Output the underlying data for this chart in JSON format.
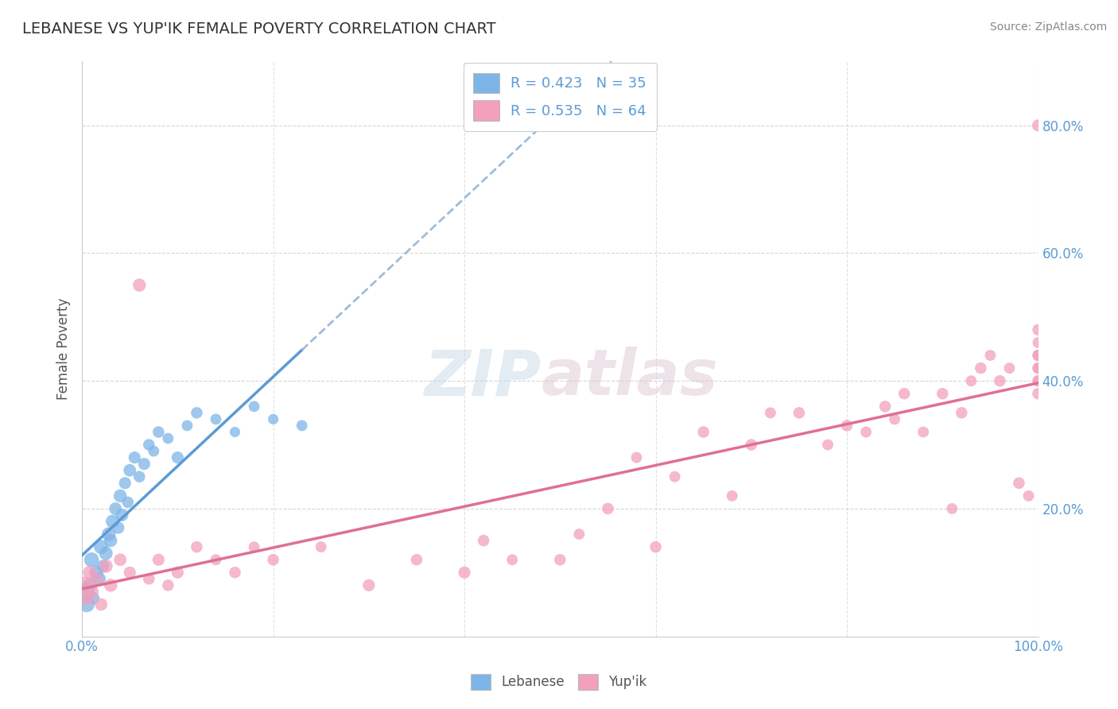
{
  "title": "LEBANESE VS YUP'IK FEMALE POVERTY CORRELATION CHART",
  "source": "Source: ZipAtlas.com",
  "ylabel": "Female Poverty",
  "blue_color": "#7eb5e8",
  "pink_color": "#f2a0bc",
  "trend_blue_solid": "#5b9bd5",
  "trend_blue_dash": "#a0bcd8",
  "trend_pink": "#e07090",
  "legend_label_blue": "R = 0.423   N = 35",
  "legend_label_pink": "R = 0.535   N = 64",
  "bottom_legend": [
    "Lebanese",
    "Yup'ik"
  ],
  "watermark_zip": "ZIP",
  "watermark_atlas": "atlas",
  "leb_x": [
    0.3,
    0.5,
    0.8,
    1.0,
    1.2,
    1.5,
    1.8,
    2.0,
    2.2,
    2.5,
    2.8,
    3.0,
    3.2,
    3.5,
    3.8,
    4.0,
    4.2,
    4.5,
    4.8,
    5.0,
    5.5,
    6.0,
    6.5,
    7.0,
    7.5,
    8.0,
    9.0,
    10.0,
    11.0,
    12.0,
    14.0,
    16.0,
    18.0,
    20.0,
    23.0
  ],
  "leb_y": [
    7,
    5,
    8,
    12,
    6,
    10,
    9,
    14,
    11,
    13,
    16,
    15,
    18,
    20,
    17,
    22,
    19,
    24,
    21,
    26,
    28,
    25,
    27,
    30,
    29,
    32,
    31,
    28,
    33,
    35,
    34,
    32,
    36,
    34,
    33
  ],
  "leb_size": [
    300,
    200,
    150,
    180,
    120,
    160,
    140,
    170,
    130,
    150,
    160,
    140,
    150,
    130,
    120,
    140,
    130,
    120,
    110,
    130,
    120,
    110,
    120,
    110,
    100,
    110,
    100,
    120,
    100,
    110,
    100,
    90,
    100,
    90,
    100
  ],
  "yup_x": [
    0.3,
    0.5,
    0.8,
    1.0,
    1.5,
    2.0,
    2.5,
    3.0,
    4.0,
    5.0,
    6.0,
    7.0,
    8.0,
    9.0,
    10.0,
    12.0,
    14.0,
    16.0,
    18.0,
    20.0,
    25.0,
    30.0,
    35.0,
    40.0,
    42.0,
    45.0,
    50.0,
    52.0,
    55.0,
    58.0,
    60.0,
    62.0,
    65.0,
    68.0,
    70.0,
    72.0,
    75.0,
    78.0,
    80.0,
    82.0,
    84.0,
    85.0,
    86.0,
    88.0,
    90.0,
    91.0,
    92.0,
    93.0,
    94.0,
    95.0,
    96.0,
    97.0,
    98.0,
    99.0,
    100.0,
    100.0,
    100.0,
    100.0,
    100.0,
    100.0,
    100.0,
    100.0,
    100.0,
    100.0
  ],
  "yup_y": [
    8,
    6,
    10,
    7,
    9,
    5,
    11,
    8,
    12,
    10,
    55,
    9,
    12,
    8,
    10,
    14,
    12,
    10,
    14,
    12,
    14,
    8,
    12,
    10,
    15,
    12,
    12,
    16,
    20,
    28,
    14,
    25,
    32,
    22,
    30,
    35,
    35,
    30,
    33,
    32,
    36,
    34,
    38,
    32,
    38,
    20,
    35,
    40,
    42,
    44,
    40,
    42,
    24,
    22,
    42,
    44,
    40,
    46,
    48,
    40,
    44,
    42,
    38,
    80
  ],
  "yup_size": [
    250,
    180,
    150,
    160,
    140,
    130,
    150,
    140,
    130,
    120,
    140,
    110,
    120,
    110,
    120,
    110,
    100,
    110,
    100,
    110,
    100,
    120,
    110,
    120,
    110,
    100,
    110,
    100,
    110,
    100,
    110,
    100,
    110,
    100,
    110,
    100,
    110,
    100,
    110,
    100,
    110,
    100,
    110,
    100,
    110,
    100,
    110,
    100,
    110,
    100,
    110,
    100,
    110,
    100,
    110,
    100,
    110,
    100,
    110,
    100,
    110,
    100,
    110,
    120
  ]
}
